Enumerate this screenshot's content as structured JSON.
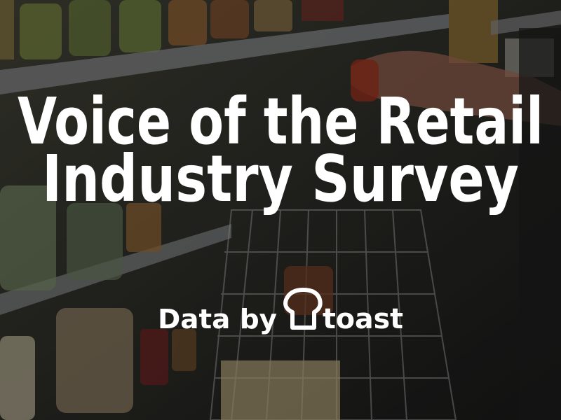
{
  "title": {
    "line1": "Voice of the Retail",
    "line2": "Industry Survey"
  },
  "credit": {
    "prefix": "Data by",
    "brand": "toast"
  }
}
